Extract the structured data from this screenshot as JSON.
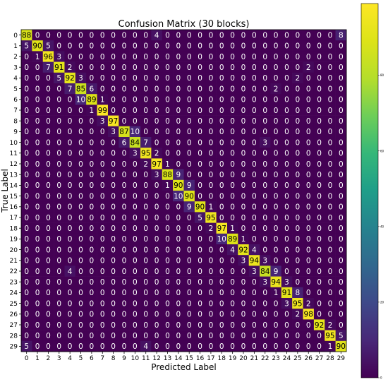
{
  "chart_data": {
    "type": "heatmap",
    "title": "Confusion Matrix (30 blocks)",
    "xlabel": "Predicted Label",
    "ylabel": "True Label",
    "x_tick_labels": [
      "0",
      "1",
      "2",
      "3",
      "4",
      "5",
      "6",
      "7",
      "8",
      "9",
      "10",
      "11",
      "12",
      "13",
      "14",
      "15",
      "16",
      "17",
      "18",
      "19",
      "20",
      "21",
      "22",
      "23",
      "24",
      "25",
      "26",
      "27",
      "28",
      "29"
    ],
    "y_tick_labels": [
      "0",
      "1",
      "2",
      "3",
      "4",
      "5",
      "6",
      "7",
      "8",
      "9",
      "10",
      "11",
      "12",
      "13",
      "14",
      "15",
      "16",
      "17",
      "18",
      "19",
      "20",
      "21",
      "22",
      "23",
      "24",
      "25",
      "26",
      "27",
      "28",
      "29"
    ],
    "colormap": "viridis",
    "vmin": 0,
    "vmax": 99,
    "colorbar_ticks": [
      0,
      20,
      40,
      60,
      80
    ],
    "matrix": [
      [
        88,
        0,
        0,
        0,
        0,
        0,
        0,
        0,
        0,
        0,
        0,
        0,
        4,
        0,
        0,
        0,
        0,
        0,
        0,
        0,
        0,
        0,
        0,
        0,
        0,
        0,
        0,
        0,
        0,
        8
      ],
      [
        5,
        90,
        5,
        0,
        0,
        0,
        0,
        0,
        0,
        0,
        0,
        0,
        0,
        0,
        0,
        0,
        0,
        0,
        0,
        0,
        0,
        0,
        0,
        0,
        0,
        0,
        0,
        0,
        0,
        0
      ],
      [
        0,
        1,
        96,
        3,
        0,
        0,
        0,
        0,
        0,
        0,
        0,
        0,
        0,
        0,
        0,
        0,
        0,
        0,
        0,
        0,
        0,
        0,
        0,
        0,
        0,
        0,
        0,
        0,
        0,
        0
      ],
      [
        0,
        0,
        7,
        91,
        2,
        0,
        0,
        0,
        0,
        0,
        0,
        0,
        0,
        0,
        0,
        0,
        0,
        0,
        0,
        0,
        0,
        0,
        0,
        0,
        0,
        0,
        2,
        0,
        0,
        0
      ],
      [
        0,
        0,
        0,
        5,
        92,
        3,
        0,
        0,
        0,
        0,
        0,
        0,
        0,
        0,
        0,
        0,
        0,
        0,
        0,
        0,
        0,
        0,
        0,
        0,
        0,
        2,
        0,
        0,
        0,
        0
      ],
      [
        0,
        0,
        0,
        0,
        7,
        85,
        6,
        0,
        0,
        0,
        0,
        0,
        0,
        0,
        0,
        0,
        0,
        0,
        0,
        0,
        0,
        0,
        0,
        2,
        0,
        0,
        0,
        0,
        0,
        0
      ],
      [
        0,
        0,
        0,
        0,
        0,
        10,
        89,
        1,
        0,
        0,
        0,
        0,
        0,
        0,
        0,
        0,
        0,
        0,
        0,
        0,
        0,
        0,
        0,
        0,
        0,
        0,
        0,
        0,
        0,
        0
      ],
      [
        0,
        0,
        0,
        0,
        0,
        0,
        1,
        99,
        0,
        0,
        0,
        0,
        0,
        0,
        0,
        0,
        0,
        0,
        0,
        0,
        0,
        0,
        0,
        0,
        0,
        0,
        0,
        0,
        0,
        0
      ],
      [
        0,
        0,
        0,
        0,
        0,
        0,
        0,
        3,
        97,
        0,
        0,
        0,
        0,
        0,
        0,
        0,
        0,
        0,
        0,
        0,
        0,
        0,
        0,
        0,
        0,
        0,
        0,
        0,
        0,
        0
      ],
      [
        0,
        0,
        0,
        0,
        0,
        0,
        0,
        0,
        3,
        87,
        10,
        0,
        0,
        0,
        0,
        0,
        0,
        0,
        0,
        0,
        0,
        0,
        0,
        0,
        0,
        0,
        0,
        0,
        0,
        0
      ],
      [
        0,
        0,
        0,
        0,
        0,
        0,
        0,
        0,
        0,
        6,
        84,
        7,
        0,
        0,
        0,
        0,
        0,
        0,
        0,
        0,
        0,
        0,
        3,
        0,
        0,
        0,
        0,
        0,
        0,
        0
      ],
      [
        0,
        0,
        0,
        0,
        0,
        0,
        0,
        0,
        0,
        0,
        3,
        95,
        2,
        0,
        0,
        0,
        0,
        0,
        0,
        0,
        0,
        0,
        0,
        0,
        0,
        0,
        0,
        0,
        0,
        0
      ],
      [
        0,
        0,
        0,
        0,
        0,
        0,
        0,
        0,
        0,
        0,
        0,
        2,
        97,
        1,
        0,
        0,
        0,
        0,
        0,
        0,
        0,
        0,
        0,
        0,
        0,
        0,
        0,
        0,
        0,
        0
      ],
      [
        0,
        0,
        0,
        0,
        0,
        0,
        0,
        0,
        0,
        0,
        0,
        0,
        3,
        88,
        9,
        0,
        0,
        0,
        0,
        0,
        0,
        0,
        0,
        0,
        0,
        0,
        0,
        0,
        0,
        0
      ],
      [
        0,
        0,
        0,
        0,
        0,
        0,
        0,
        0,
        0,
        0,
        0,
        0,
        0,
        1,
        90,
        9,
        0,
        0,
        0,
        0,
        0,
        0,
        0,
        0,
        0,
        0,
        0,
        0,
        0,
        0
      ],
      [
        0,
        0,
        0,
        0,
        0,
        0,
        0,
        0,
        0,
        0,
        0,
        0,
        0,
        0,
        10,
        90,
        0,
        0,
        0,
        0,
        0,
        0,
        0,
        0,
        0,
        0,
        0,
        0,
        0,
        0
      ],
      [
        0,
        0,
        0,
        0,
        0,
        0,
        0,
        0,
        0,
        0,
        0,
        0,
        0,
        0,
        0,
        9,
        90,
        1,
        0,
        0,
        0,
        0,
        0,
        0,
        0,
        0,
        0,
        0,
        0,
        0
      ],
      [
        0,
        0,
        0,
        0,
        0,
        0,
        0,
        0,
        0,
        0,
        0,
        0,
        0,
        0,
        0,
        0,
        5,
        95,
        0,
        0,
        0,
        0,
        0,
        0,
        0,
        0,
        0,
        0,
        0,
        0
      ],
      [
        0,
        0,
        0,
        0,
        0,
        0,
        0,
        0,
        0,
        0,
        0,
        0,
        0,
        0,
        0,
        0,
        0,
        2,
        97,
        1,
        0,
        0,
        0,
        0,
        0,
        0,
        0,
        0,
        0,
        0
      ],
      [
        0,
        0,
        0,
        0,
        0,
        0,
        0,
        0,
        0,
        0,
        0,
        0,
        0,
        0,
        0,
        0,
        0,
        0,
        10,
        89,
        1,
        0,
        0,
        0,
        0,
        0,
        0,
        0,
        0,
        0
      ],
      [
        0,
        0,
        0,
        0,
        0,
        0,
        0,
        0,
        0,
        0,
        0,
        0,
        0,
        0,
        0,
        0,
        0,
        0,
        0,
        4,
        92,
        4,
        0,
        0,
        0,
        0,
        0,
        0,
        0,
        0
      ],
      [
        0,
        0,
        0,
        0,
        0,
        0,
        0,
        0,
        0,
        0,
        0,
        0,
        0,
        0,
        0,
        0,
        0,
        0,
        0,
        0,
        3,
        94,
        3,
        0,
        0,
        0,
        0,
        0,
        0,
        0
      ],
      [
        0,
        0,
        0,
        0,
        4,
        0,
        0,
        0,
        0,
        0,
        0,
        0,
        0,
        0,
        0,
        0,
        0,
        0,
        0,
        0,
        0,
        3,
        84,
        9,
        0,
        0,
        0,
        0,
        0,
        0
      ],
      [
        0,
        0,
        0,
        0,
        0,
        0,
        0,
        0,
        0,
        0,
        0,
        0,
        0,
        0,
        0,
        0,
        0,
        0,
        0,
        0,
        0,
        0,
        3,
        94,
        3,
        0,
        0,
        0,
        0,
        0
      ],
      [
        0,
        0,
        0,
        0,
        0,
        0,
        0,
        0,
        0,
        0,
        0,
        0,
        0,
        0,
        0,
        0,
        0,
        0,
        0,
        0,
        0,
        0,
        0,
        1,
        91,
        8,
        0,
        0,
        0,
        0
      ],
      [
        0,
        0,
        0,
        0,
        0,
        0,
        0,
        0,
        0,
        0,
        0,
        0,
        0,
        0,
        0,
        0,
        0,
        0,
        0,
        0,
        0,
        0,
        0,
        0,
        3,
        95,
        2,
        0,
        0,
        0
      ],
      [
        0,
        0,
        0,
        0,
        0,
        0,
        0,
        0,
        0,
        0,
        0,
        0,
        0,
        0,
        0,
        0,
        0,
        0,
        0,
        0,
        0,
        0,
        0,
        0,
        0,
        2,
        98,
        0,
        0,
        0
      ],
      [
        0,
        0,
        0,
        0,
        0,
        0,
        0,
        0,
        0,
        0,
        0,
        0,
        0,
        0,
        0,
        0,
        0,
        0,
        0,
        0,
        0,
        0,
        0,
        0,
        0,
        0,
        0,
        92,
        2,
        0
      ],
      [
        0,
        0,
        0,
        0,
        0,
        0,
        0,
        0,
        0,
        0,
        0,
        0,
        0,
        0,
        0,
        0,
        0,
        0,
        0,
        0,
        0,
        0,
        0,
        0,
        0,
        0,
        0,
        0,
        95,
        5
      ],
      [
        5,
        0,
        0,
        0,
        0,
        0,
        0,
        0,
        0,
        0,
        0,
        4,
        0,
        0,
        0,
        0,
        0,
        0,
        0,
        0,
        0,
        0,
        0,
        0,
        0,
        0,
        0,
        0,
        1,
        90
      ]
    ]
  }
}
